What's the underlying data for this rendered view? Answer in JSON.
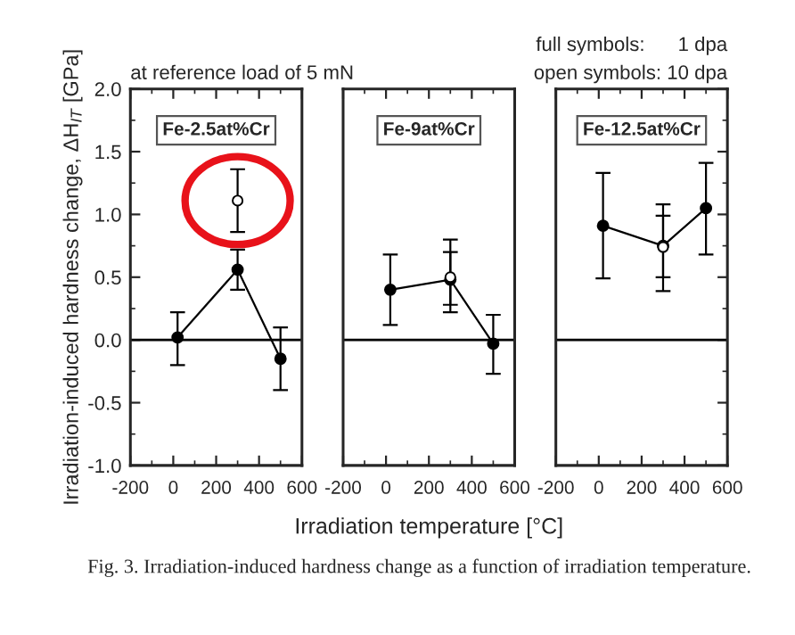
{
  "chart_data": [
    {
      "type": "line",
      "title": "Fe-2.5at%Cr",
      "ylabel": "Irradiation-induced hardness change, ΔH$_{IT}$ [GPa]",
      "annotations": [
        "at reference load of 5 mN",
        "Fig. 3. Irradiation-induced hardness change as a function of irradiation temperature."
      ],
      "xlim": [
        -200,
        600
      ],
      "xticks": [
        -200,
        0,
        200,
        400,
        600
      ],
      "ylim": [
        -1.0,
        2.0
      ],
      "yticks": [
        {
          "value": -1.0,
          "label": "-1.0"
        },
        {
          "value": -0.5,
          "label": "-0.5"
        },
        {
          "value": 0.0,
          "label": "0.0"
        },
        {
          "value": 0.5,
          "label": "0.5"
        },
        {
          "value": 1.0,
          "label": "1.0"
        },
        {
          "value": 1.5,
          "label": "1.5"
        },
        {
          "value": 2.0,
          "label": "2.0"
        }
      ],
      "marker": "circle",
      "grid": false,
      "legend": false,
      "ref_lines": [
        {
          "axis": "y",
          "value": 0
        }
      ],
      "series": [
        {
          "color": "#000000",
          "x": [
            20,
            300,
            500
          ],
          "values": [
            0.02,
            0.56,
            -0.15
          ],
          "errors": [
            [
              -0.2,
              0.22
            ],
            [
              0.4,
              0.72
            ],
            [
              -0.4,
              0.1
            ]
          ]
        },
        {
          "type": "scatter",
          "color": "#ffffff",
          "x": [
            300
          ],
          "values": [
            1.11
          ],
          "errors": [
            [
              0.86,
              1.36
            ]
          ]
        }
      ]
    },
    {
      "type": "line",
      "title": "Fe-9at%Cr",
      "xlabel": "Irradiation temperature [°C]",
      "xlim": [
        -200,
        600
      ],
      "xticks": [
        -200,
        0,
        200,
        400,
        600
      ],
      "ylim": [
        -1.0,
        2.0
      ],
      "yticks": [
        -1.0,
        -0.5,
        0.0,
        0.5,
        1.0,
        1.5,
        2.0
      ],
      "tick_labels": "x",
      "marker": "circle",
      "grid": false,
      "legend": false,
      "ref_lines": [
        {
          "axis": "y",
          "value": 0
        }
      ],
      "series": [
        {
          "color": "#000000",
          "x": [
            20,
            300,
            500
          ],
          "values": [
            0.4,
            0.48,
            -0.03
          ],
          "errors": [
            [
              0.12,
              0.68
            ],
            [
              0.28,
              0.7
            ],
            [
              -0.27,
              0.2
            ]
          ]
        },
        {
          "type": "scatter",
          "color": "#ffffff",
          "x": [
            300
          ],
          "values": [
            0.5
          ],
          "errors": [
            [
              0.22,
              0.8
            ]
          ]
        }
      ]
    },
    {
      "type": "line",
      "title": "Fe-12.5at%Cr",
      "annotations": [
        "full symbols:      1 dpa",
        "open symbols: 10 dpa"
      ],
      "xlim": [
        -200,
        600
      ],
      "xticks": [
        -200,
        0,
        200,
        400,
        600
      ],
      "ylim": [
        -1.0,
        2.0
      ],
      "yticks": [
        -1.0,
        -0.5,
        0.0,
        0.5,
        1.0,
        1.5,
        2.0
      ],
      "tick_labels": "x",
      "marker": "circle",
      "grid": false,
      "legend": false,
      "ref_lines": [
        {
          "axis": "y",
          "value": 0
        }
      ],
      "series": [
        {
          "color": "#000000",
          "x": [
            20,
            300,
            500
          ],
          "values": [
            0.91,
            0.75,
            1.05
          ],
          "errors": [
            [
              0.49,
              1.33
            ],
            [
              0.5,
              0.99
            ],
            [
              0.68,
              1.41
            ]
          ]
        },
        {
          "type": "scatter",
          "color": "#ffffff",
          "x": [
            300
          ],
          "values": [
            0.74
          ],
          "errors": [
            [
              0.39,
              1.08
            ]
          ]
        }
      ]
    }
  ]
}
